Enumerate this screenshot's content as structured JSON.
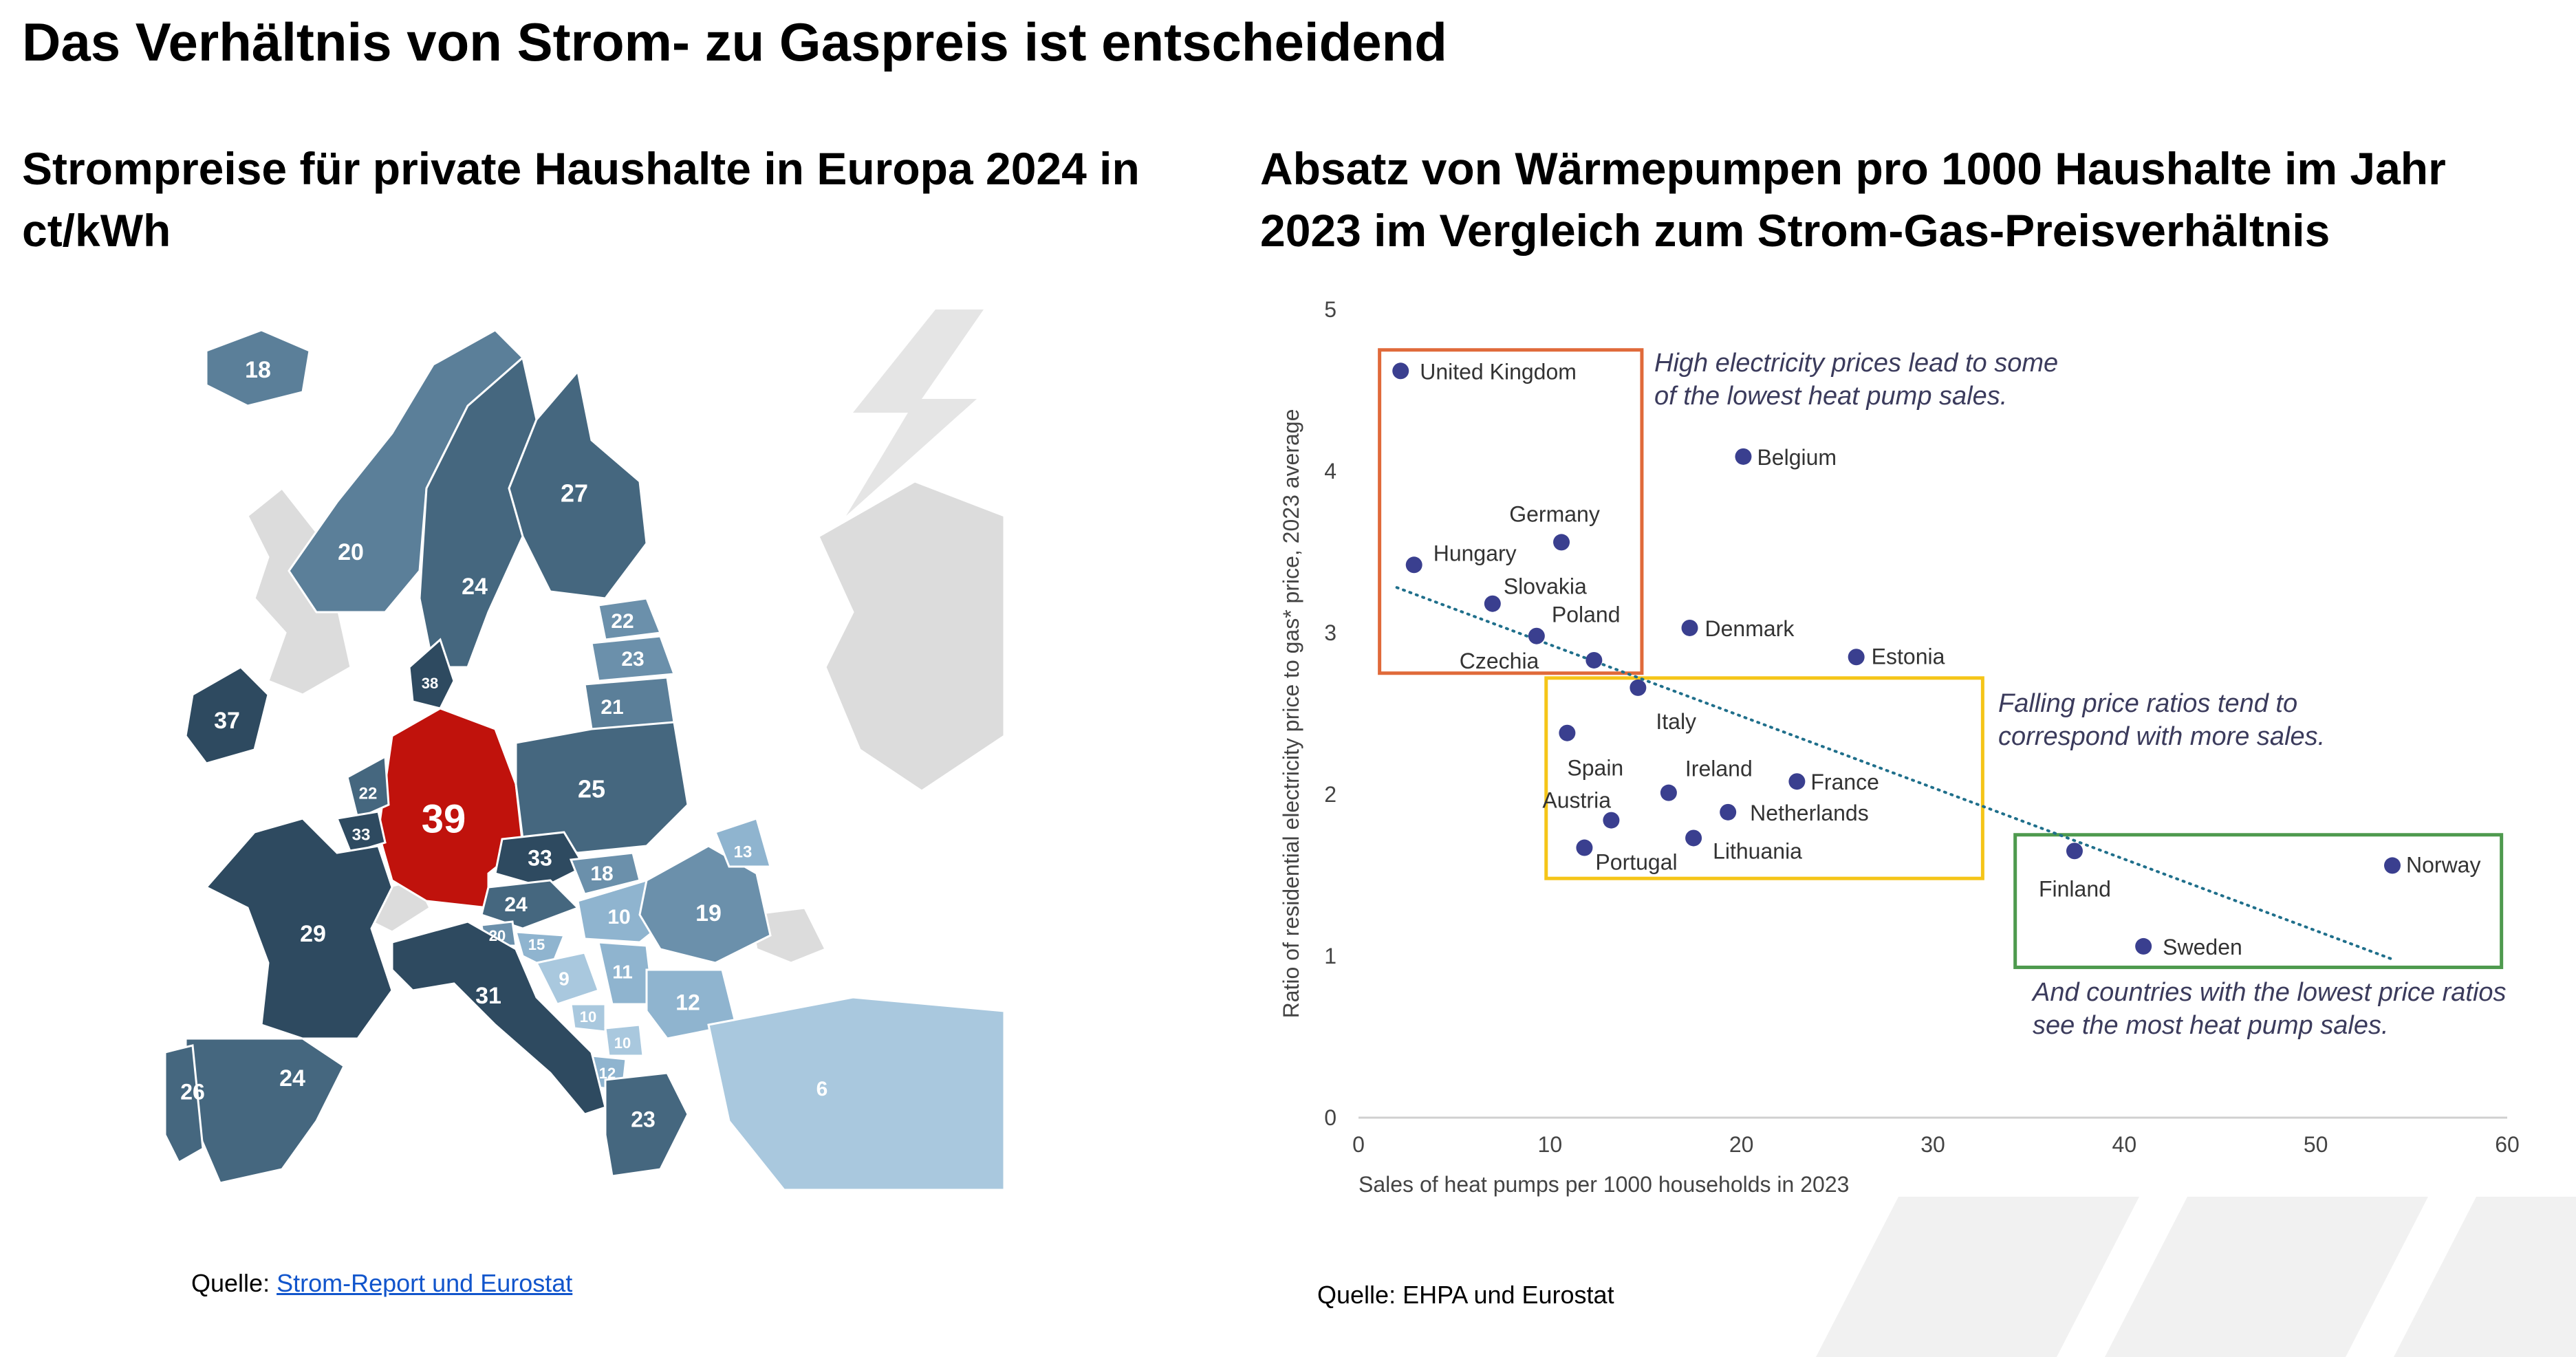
{
  "slide": {
    "title": "Das Verhältnis von Strom- zu Gaspreis ist entscheidend"
  },
  "left_panel": {
    "title": "Strompreise für private Haushalte in Europa 2024 in ct/kWh",
    "source_prefix": "Quelle: ",
    "source_link": "Strom-Report und Eurostat",
    "map_values": [
      {
        "country": "Iceland",
        "value": "18",
        "color": "#5b7f99"
      },
      {
        "country": "Norway",
        "value": "20",
        "color": "#5b7f99"
      },
      {
        "country": "Sweden",
        "value": "24",
        "color": "#45677f"
      },
      {
        "country": "Finland",
        "value": "27",
        "color": "#45677f"
      },
      {
        "country": "Estonia",
        "value": "22",
        "color": "#6b90ab"
      },
      {
        "country": "Latvia",
        "value": "23",
        "color": "#6b90ab"
      },
      {
        "country": "Lithuania",
        "value": "21",
        "color": "#5b7f99"
      },
      {
        "country": "Denmark",
        "value": "38",
        "color": "#2e4a60"
      },
      {
        "country": "Ireland",
        "value": "37",
        "color": "#2e4a60"
      },
      {
        "country": "Germany",
        "value": "39",
        "color": "#c0120c"
      },
      {
        "country": "Poland",
        "value": "25",
        "color": "#45677f"
      },
      {
        "country": "Netherlands",
        "value": "22",
        "color": "#45677f"
      },
      {
        "country": "Belgium",
        "value": "33",
        "color": "#2e4a60"
      },
      {
        "country": "Czechia",
        "value": "33",
        "color": "#2e4a60"
      },
      {
        "country": "Slovakia",
        "value": "18",
        "color": "#6b90ab"
      },
      {
        "country": "Austria",
        "value": "24",
        "color": "#45677f"
      },
      {
        "country": "Hungary",
        "value": "10",
        "color": "#8fb4cf"
      },
      {
        "country": "Romania",
        "value": "19",
        "color": "#6b90ab"
      },
      {
        "country": "Moldova",
        "value": "13",
        "color": "#8fb4cf"
      },
      {
        "country": "France",
        "value": "29",
        "color": "#2e4a60"
      },
      {
        "country": "Slovenia",
        "value": "20",
        "color": "#6b90ab"
      },
      {
        "country": "Croatia",
        "value": "15",
        "color": "#8fb4cf"
      },
      {
        "country": "Bosnia",
        "value": "9",
        "color": "#a9c8de"
      },
      {
        "country": "Serbia",
        "value": "11",
        "color": "#8fb4cf"
      },
      {
        "country": "Montenegro",
        "value": "10",
        "color": "#a9c8de"
      },
      {
        "country": "Kosovo",
        "value": "10",
        "color": "#a9c8de"
      },
      {
        "country": "North Macedonia",
        "value": "12",
        "color": "#8fb4cf"
      },
      {
        "country": "Bulgaria",
        "value": "12",
        "color": "#8fb4cf"
      },
      {
        "country": "Italy",
        "value": "31",
        "color": "#2e4a60"
      },
      {
        "country": "Greece",
        "value": "23",
        "color": "#45677f"
      },
      {
        "country": "Spain",
        "value": "24",
        "color": "#45677f"
      },
      {
        "country": "Portugal",
        "value": "26",
        "color": "#45677f"
      },
      {
        "country": "Turkey",
        "value": "6",
        "color": "#a9c8de"
      }
    ]
  },
  "right_panel": {
    "title": "Absatz von  Wärmepumpen pro 1000 Haushalte im Jahr 2023 im Vergleich zum Strom-Gas-Preisverhältnis",
    "source": "Quelle: EHPA und Eurostat"
  },
  "chart_data": {
    "type": "scatter",
    "xlabel": "Sales of heat pumps per 1000 households in 2023",
    "ylabel": "Ratio of residential electricity price to gas* price, 2023 average",
    "xlim": [
      0,
      60
    ],
    "ylim": [
      0,
      5
    ],
    "x_ticks": [
      "0",
      "10",
      "20",
      "30",
      "40",
      "50",
      "60"
    ],
    "y_ticks": [
      "0",
      "1",
      "2",
      "3",
      "4",
      "5"
    ],
    "point_color": "#3a3f8f",
    "points": [
      {
        "label": "United Kingdom",
        "x": 2.2,
        "y": 4.62
      },
      {
        "label": "Belgium",
        "x": 20.1,
        "y": 4.09
      },
      {
        "label": "Germany",
        "x": 10.6,
        "y": 3.56
      },
      {
        "label": "Hungary",
        "x": 2.9,
        "y": 3.42
      },
      {
        "label": "Slovakia",
        "x": 7.0,
        "y": 3.18
      },
      {
        "label": "Poland",
        "x": 9.3,
        "y": 2.98
      },
      {
        "label": "Czechia",
        "x": 12.3,
        "y": 2.83
      },
      {
        "label": "Denmark",
        "x": 17.3,
        "y": 3.03
      },
      {
        "label": "Estonia",
        "x": 26.0,
        "y": 2.85
      },
      {
        "label": "Italy",
        "x": 14.6,
        "y": 2.66
      },
      {
        "label": "Spain",
        "x": 10.9,
        "y": 2.38
      },
      {
        "label": "Ireland",
        "x": 16.2,
        "y": 2.01
      },
      {
        "label": "France",
        "x": 22.9,
        "y": 2.08
      },
      {
        "label": "Austria",
        "x": 13.2,
        "y": 1.84
      },
      {
        "label": "Netherlands",
        "x": 19.3,
        "y": 1.89
      },
      {
        "label": "Portugal",
        "x": 11.8,
        "y": 1.67
      },
      {
        "label": "Lithuania",
        "x": 17.5,
        "y": 1.73
      },
      {
        "label": "Finland",
        "x": 37.4,
        "y": 1.65
      },
      {
        "label": "Norway",
        "x": 54.0,
        "y": 1.56
      },
      {
        "label": "Sweden",
        "x": 41.0,
        "y": 1.06
      }
    ],
    "trendline": {
      "x": [
        2,
        54
      ],
      "y": [
        3.28,
        0.98
      ],
      "style": "dotted",
      "color": "#1f6f8b"
    },
    "boxes": [
      {
        "x": [
          1.1,
          14.8
        ],
        "y": [
          2.75,
          4.75
        ],
        "color": "#e06a3a"
      },
      {
        "x": [
          9.8,
          32.6
        ],
        "y": [
          1.48,
          2.72
        ],
        "color": "#f5c518"
      },
      {
        "x": [
          34.3,
          59.7
        ],
        "y": [
          0.93,
          1.75
        ],
        "color": "#4e9a4e"
      }
    ],
    "annotations": [
      {
        "text": "High electricity prices lead to some of the lowest heat pump sales."
      },
      {
        "text": "Falling price ratios tend to correspond with more sales."
      },
      {
        "text": "And countries with the lowest price ratios see the most heat pump sales."
      }
    ]
  }
}
